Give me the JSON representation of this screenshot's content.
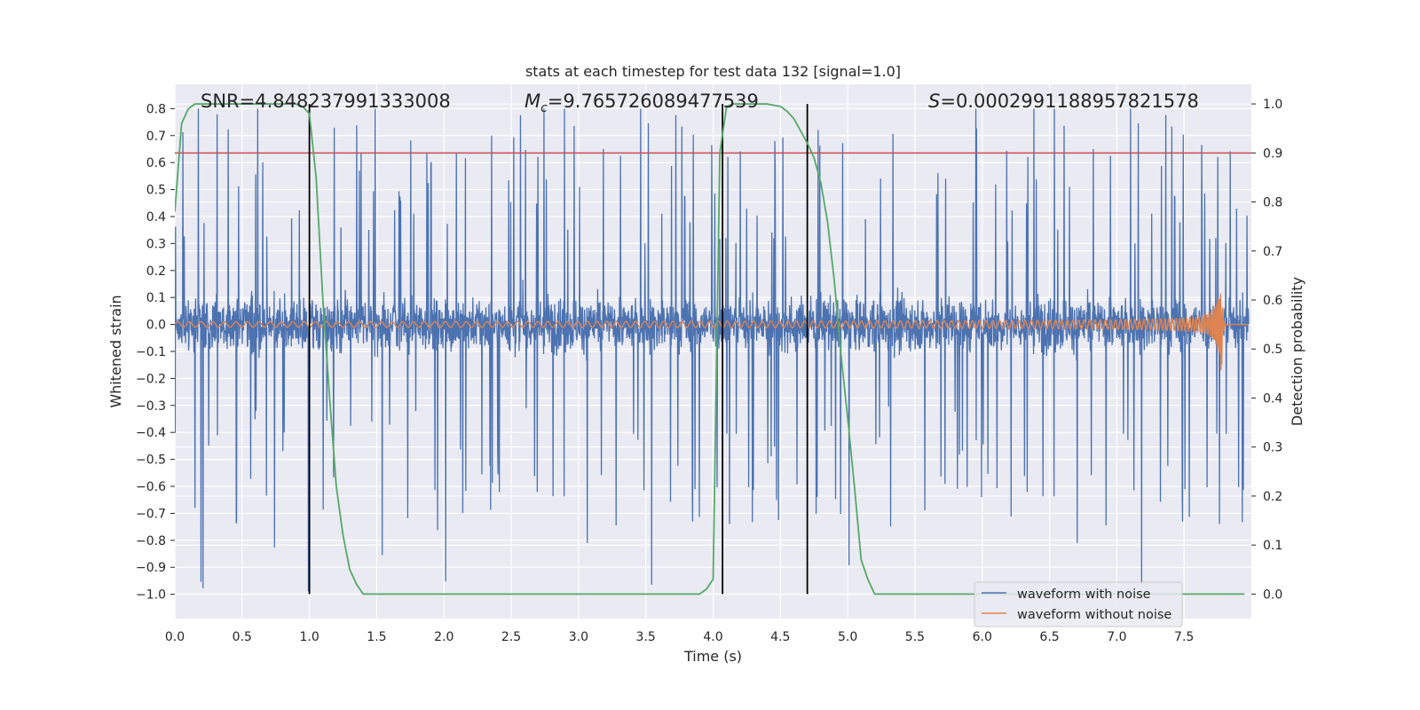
{
  "chart_data": {
    "type": "line",
    "title": "stats at each timestep for test data 132 [signal=1.0]",
    "xlabel": "Time (s)",
    "ylabel": "Whitened strain",
    "ylabel_right": "Detection probability",
    "xlim": [
      0.0,
      8.0
    ],
    "ylim": [
      -1.09,
      0.89
    ],
    "ylim_right": [
      -0.05,
      1.04
    ],
    "x_ticks": [
      0.0,
      0.5,
      1.0,
      1.5,
      2.0,
      2.5,
      3.0,
      3.5,
      4.0,
      4.5,
      5.0,
      5.5,
      6.0,
      6.5,
      7.0,
      7.5
    ],
    "x_tick_labels": [
      "0.0",
      "0.5",
      "1.0",
      "1.5",
      "2.0",
      "2.5",
      "3.0",
      "3.5",
      "4.0",
      "4.5",
      "5.0",
      "5.5",
      "6.0",
      "6.5",
      "7.0",
      "7.5"
    ],
    "y_ticks": [
      0.8,
      0.7,
      0.6,
      0.5,
      0.4,
      0.3,
      0.2,
      0.1,
      0.0,
      -0.1,
      -0.2,
      -0.3,
      -0.4,
      -0.5,
      -0.6,
      -0.7,
      -0.8,
      -0.9,
      -1.0
    ],
    "y_tick_labels": [
      "0.8",
      "0.7",
      "0.6",
      "0.5",
      "0.4",
      "0.3",
      "0.2",
      "0.1",
      "0.0",
      "−0.1",
      "−0.2",
      "−0.3",
      "−0.4",
      "−0.5",
      "−0.6",
      "−0.7",
      "−0.8",
      "−0.9",
      "−1.0"
    ],
    "y2_ticks": [
      1.0,
      0.9,
      0.8,
      0.7,
      0.6,
      0.5,
      0.4,
      0.3,
      0.2,
      0.1,
      0.0
    ],
    "y2_tick_labels": [
      "1.0",
      "0.9",
      "0.8",
      "0.7",
      "0.6",
      "0.5",
      "0.4",
      "0.3",
      "0.2",
      "0.1",
      "0.0"
    ],
    "grid": true,
    "legend_position": "lower-right",
    "annotations": {
      "snr": "SNR=4.848237991333008",
      "mc_symbol": "M",
      "mc_sub": "c",
      "mc_value": "=9.765726089477539",
      "s_symbol": "S",
      "s_value": "=0.0002991188957821578"
    },
    "series": [
      {
        "name": "waveform with noise",
        "axis": "left",
        "color": "#4c72b0",
        "kind": "noise",
        "envelope_max": 0.8,
        "envelope_min": -1.0,
        "dense_band": [
          -0.28,
          0.26
        ],
        "sample_rate_hz": 2048
      },
      {
        "name": "waveform without noise",
        "axis": "left",
        "color": "#dd8452",
        "kind": "chirp",
        "amplitude_start": 0.01,
        "amplitude_peak": 0.17,
        "amplitude_peak_negative": -0.16,
        "merger_time": 7.78
      },
      {
        "name": "detection probability",
        "axis": "right",
        "color": "#55a868",
        "x": [
          0.0,
          0.05,
          0.1,
          0.15,
          0.2,
          0.3,
          0.5,
          0.7,
          0.8,
          0.9,
          0.95,
          1.0,
          1.05,
          1.1,
          1.15,
          1.2,
          1.25,
          1.3,
          1.35,
          1.4,
          1.5,
          2.0,
          2.5,
          3.0,
          3.5,
          3.9,
          3.95,
          4.0,
          4.05,
          4.1,
          4.15,
          4.2,
          4.3,
          4.4,
          4.5,
          4.55,
          4.6,
          4.65,
          4.7,
          4.75,
          4.8,
          4.85,
          4.9,
          4.95,
          5.0,
          5.05,
          5.1,
          5.15,
          5.2,
          5.25,
          5.5,
          6.0,
          6.5,
          7.0,
          7.5,
          7.95
        ],
        "values": [
          0.78,
          0.96,
          0.99,
          1.0,
          1.0,
          1.0,
          1.0,
          1.0,
          1.0,
          1.0,
          0.995,
          0.98,
          0.85,
          0.6,
          0.4,
          0.22,
          0.12,
          0.05,
          0.02,
          0.0,
          0.0,
          0.0,
          0.0,
          0.0,
          0.0,
          0.0,
          0.01,
          0.03,
          0.9,
          0.995,
          1.0,
          1.0,
          1.0,
          1.0,
          0.995,
          0.985,
          0.97,
          0.945,
          0.92,
          0.89,
          0.84,
          0.76,
          0.64,
          0.49,
          0.36,
          0.22,
          0.07,
          0.03,
          0.0,
          0.0,
          0.0,
          0.0,
          0.0,
          0.0,
          0.0,
          0.0
        ]
      },
      {
        "name": "threshold",
        "axis": "right",
        "color": "#c44e52",
        "y": 0.9
      },
      {
        "name": "boundaries",
        "axis": "both",
        "color": "#000000",
        "x": [
          1.0,
          4.07,
          4.7
        ]
      }
    ]
  }
}
